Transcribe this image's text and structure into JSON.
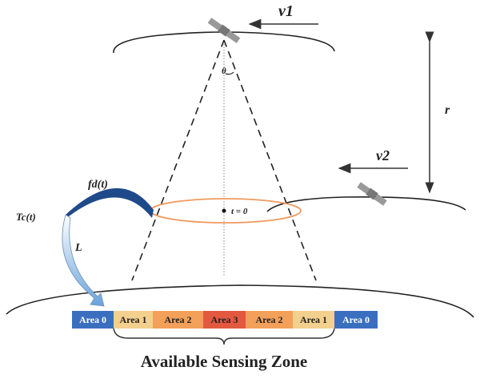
{
  "labels": {
    "v1": "v1",
    "v2": "v2",
    "r": "r",
    "theta": "θ",
    "t0": "t = 0",
    "fd": "fd(t)",
    "tc": "Tc(t)",
    "L": "L"
  },
  "areas": [
    {
      "label": "Area 0",
      "color": "#3a6fc0",
      "text": "#ffffff"
    },
    {
      "label": "Area 1",
      "color": "#f3d08e",
      "text": "#222222"
    },
    {
      "label": "Area 2",
      "color": "#f2a05a",
      "text": "#222222"
    },
    {
      "label": "Area 3",
      "color": "#e2593f",
      "text": "#222222"
    },
    {
      "label": "Area 2",
      "color": "#f2a05a",
      "text": "#222222"
    },
    {
      "label": "Area 1",
      "color": "#f3d08e",
      "text": "#222222"
    },
    {
      "label": "Area 0",
      "color": "#3a6fc0",
      "text": "#ffffff"
    }
  ],
  "zone_title": "Available Sensing Zone",
  "colors": {
    "ellipse": "#f09a5e",
    "fd_arc": "#1f4a8a",
    "L_arrow": "#7fb0e0"
  }
}
